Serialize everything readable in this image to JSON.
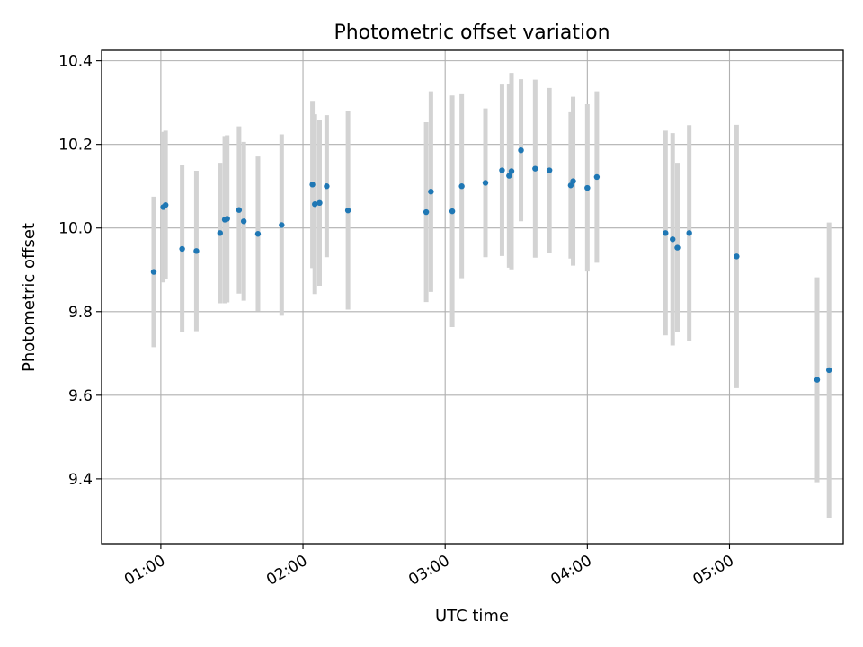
{
  "chart_data": {
    "type": "scatter",
    "title": "Photometric offset variation",
    "xlabel": "UTC time",
    "ylabel": "Photometric offset",
    "x_unit": "UTC time (HH:MM)",
    "xlim": [
      "00:35",
      "05:48"
    ],
    "ylim": [
      9.245,
      10.425
    ],
    "grid": true,
    "x_tick_labels": [
      "01:00",
      "02:00",
      "03:00",
      "04:00",
      "05:00"
    ],
    "y_tick_values": [
      9.4,
      9.6,
      9.8,
      10.0,
      10.2,
      10.4
    ],
    "y_tick_labels": [
      "9.4",
      "9.6",
      "9.8",
      "10.0",
      "10.2",
      "10.4"
    ],
    "colors": {
      "point": "#1f77b4",
      "errorbar": "#d3d3d3",
      "grid": "#b0b0b0"
    },
    "points": [
      {
        "x": "00:57",
        "y": 9.895,
        "yerr": 0.18
      },
      {
        "x": "01:01",
        "y": 10.05,
        "yerr": 0.18
      },
      {
        "x": "01:02",
        "y": 10.055,
        "yerr": 0.178
      },
      {
        "x": "01:09",
        "y": 9.95,
        "yerr": 0.2
      },
      {
        "x": "01:15",
        "y": 9.945,
        "yerr": 0.192
      },
      {
        "x": "01:25",
        "y": 9.988,
        "yerr": 0.168
      },
      {
        "x": "01:27",
        "y": 10.02,
        "yerr": 0.2
      },
      {
        "x": "01:28",
        "y": 10.022,
        "yerr": 0.2
      },
      {
        "x": "01:33",
        "y": 10.043,
        "yerr": 0.2
      },
      {
        "x": "01:35",
        "y": 10.016,
        "yerr": 0.19
      },
      {
        "x": "01:41",
        "y": 9.986,
        "yerr": 0.185
      },
      {
        "x": "01:51",
        "y": 10.007,
        "yerr": 0.217
      },
      {
        "x": "02:04",
        "y": 10.104,
        "yerr": 0.2
      },
      {
        "x": "02:05",
        "y": 10.057,
        "yerr": 0.215
      },
      {
        "x": "02:07",
        "y": 10.06,
        "yerr": 0.198
      },
      {
        "x": "02:10",
        "y": 10.1,
        "yerr": 0.17
      },
      {
        "x": "02:19",
        "y": 10.042,
        "yerr": 0.237
      },
      {
        "x": "02:52",
        "y": 10.038,
        "yerr": 0.215
      },
      {
        "x": "02:54",
        "y": 10.087,
        "yerr": 0.24
      },
      {
        "x": "03:03",
        "y": 10.04,
        "yerr": 0.277
      },
      {
        "x": "03:07",
        "y": 10.1,
        "yerr": 0.22
      },
      {
        "x": "03:17",
        "y": 10.108,
        "yerr": 0.178
      },
      {
        "x": "03:24",
        "y": 10.138,
        "yerr": 0.205
      },
      {
        "x": "03:27",
        "y": 10.125,
        "yerr": 0.22
      },
      {
        "x": "03:28",
        "y": 10.136,
        "yerr": 0.235
      },
      {
        "x": "03:32",
        "y": 10.186,
        "yerr": 0.17
      },
      {
        "x": "03:38",
        "y": 10.142,
        "yerr": 0.213
      },
      {
        "x": "03:44",
        "y": 10.138,
        "yerr": 0.197
      },
      {
        "x": "03:53",
        "y": 10.102,
        "yerr": 0.175
      },
      {
        "x": "03:54",
        "y": 10.112,
        "yerr": 0.202
      },
      {
        "x": "04:00",
        "y": 10.096,
        "yerr": 0.2
      },
      {
        "x": "04:04",
        "y": 10.122,
        "yerr": 0.205
      },
      {
        "x": "04:33",
        "y": 9.988,
        "yerr": 0.245
      },
      {
        "x": "04:36",
        "y": 9.973,
        "yerr": 0.254
      },
      {
        "x": "04:38",
        "y": 9.953,
        "yerr": 0.203
      },
      {
        "x": "04:43",
        "y": 9.988,
        "yerr": 0.258
      },
      {
        "x": "05:03",
        "y": 9.932,
        "yerr": 0.315
      },
      {
        "x": "05:37",
        "y": 9.637,
        "yerr": 0.245
      },
      {
        "x": "05:42",
        "y": 9.66,
        "yerr": 0.353
      }
    ]
  }
}
